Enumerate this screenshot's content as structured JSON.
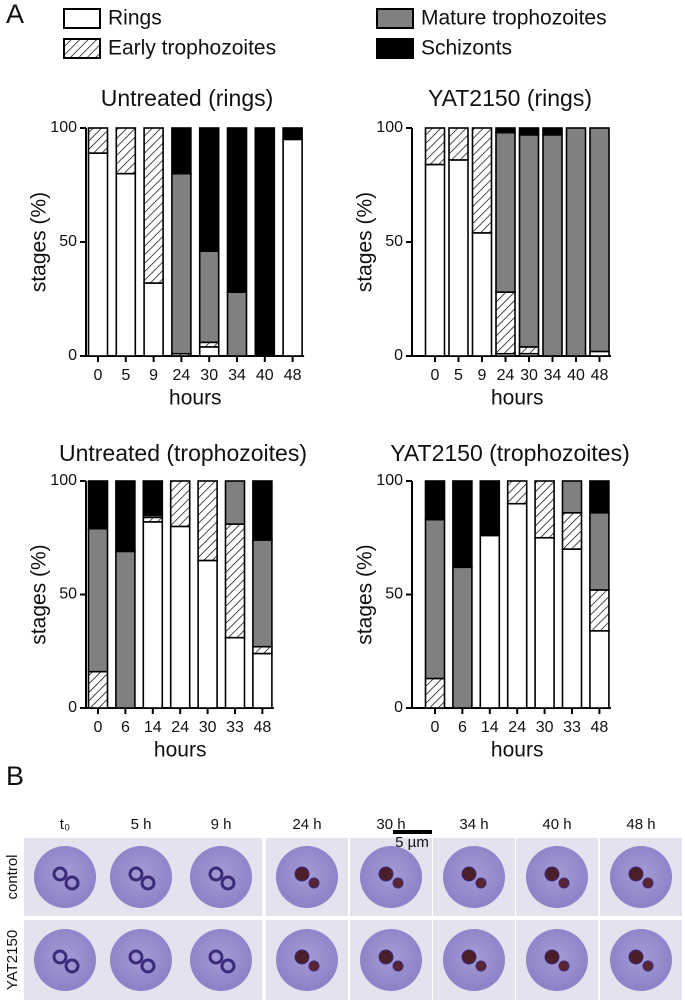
{
  "panel_label": "A",
  "chart_data": [
    {
      "type": "stacked-bar",
      "title": "Untreated (rings)",
      "x_label": "hours",
      "y_label": "stages (%)",
      "categories": [
        "0",
        "5",
        "9",
        "24",
        "30",
        "34",
        "40",
        "48"
      ],
      "ylim": [
        0,
        100
      ],
      "yticks": [
        0,
        50,
        100
      ],
      "series": [
        {
          "name": "Rings",
          "color": "#ffffff",
          "values": [
            89,
            80,
            32,
            0,
            4,
            0,
            0,
            95
          ]
        },
        {
          "name": "Early trophozoites",
          "color": "#ffffff",
          "hatch": true,
          "values": [
            11,
            20,
            68,
            1,
            2,
            0,
            0,
            0
          ]
        },
        {
          "name": "Mature trophozoites",
          "color": "#808080",
          "values": [
            0,
            0,
            0,
            79,
            40,
            28,
            0,
            0
          ]
        },
        {
          "name": "Schizonts",
          "color": "#000000",
          "values": [
            0,
            0,
            0,
            20,
            54,
            72,
            100,
            5
          ]
        }
      ]
    },
    {
      "type": "stacked-bar",
      "title": "YAT2150 (rings)",
      "x_label": "hours",
      "y_label": "stages (%)",
      "categories": [
        "0",
        "5",
        "9",
        "24",
        "30",
        "34",
        "40",
        "48"
      ],
      "ylim": [
        0,
        100
      ],
      "yticks": [
        0,
        50,
        100
      ],
      "series": [
        {
          "name": "Rings",
          "color": "#ffffff",
          "values": [
            84,
            86,
            54,
            1,
            1,
            0,
            0,
            2
          ]
        },
        {
          "name": "Early trophozoites",
          "color": "#ffffff",
          "hatch": true,
          "values": [
            16,
            14,
            46,
            27,
            3,
            0,
            0,
            0
          ]
        },
        {
          "name": "Mature trophozoites",
          "color": "#808080",
          "values": [
            0,
            0,
            0,
            70,
            93,
            97,
            100,
            98
          ]
        },
        {
          "name": "Schizonts",
          "color": "#000000",
          "values": [
            0,
            0,
            0,
            2,
            3,
            3,
            0,
            0
          ]
        }
      ]
    },
    {
      "type": "stacked-bar",
      "title": "Untreated (trophozoites)",
      "x_label": "hours",
      "y_label": "stages (%)",
      "categories": [
        "0",
        "6",
        "14",
        "24",
        "30",
        "33",
        "48"
      ],
      "ylim": [
        0,
        100
      ],
      "yticks": [
        0,
        50,
        100
      ],
      "series": [
        {
          "name": "Rings",
          "color": "#ffffff",
          "values": [
            0,
            0,
            82,
            80,
            65,
            31,
            24
          ]
        },
        {
          "name": "Early trophozoites",
          "color": "#ffffff",
          "hatch": true,
          "values": [
            16,
            0,
            2,
            20,
            35,
            50,
            3
          ]
        },
        {
          "name": "Mature trophozoites",
          "color": "#808080",
          "values": [
            63,
            69,
            1,
            0,
            0,
            19,
            47
          ]
        },
        {
          "name": "Schizonts",
          "color": "#000000",
          "values": [
            21,
            31,
            15,
            0,
            0,
            0,
            26
          ]
        }
      ]
    },
    {
      "type": "stacked-bar",
      "title": "YAT2150 (trophozoites)",
      "x_label": "hours",
      "y_label": "stages (%)",
      "categories": [
        "0",
        "6",
        "14",
        "24",
        "30",
        "33",
        "48"
      ],
      "ylim": [
        0,
        100
      ],
      "yticks": [
        0,
        50,
        100
      ],
      "series": [
        {
          "name": "Rings",
          "color": "#ffffff",
          "values": [
            0,
            0,
            76,
            90,
            75,
            70,
            34
          ]
        },
        {
          "name": "Early trophozoites",
          "color": "#ffffff",
          "hatch": true,
          "values": [
            13,
            0,
            0,
            10,
            25,
            16,
            18
          ]
        },
        {
          "name": "Mature trophozoites",
          "color": "#808080",
          "values": [
            70,
            62,
            0,
            0,
            0,
            14,
            34
          ]
        },
        {
          "name": "Schizonts",
          "color": "#000000",
          "values": [
            17,
            38,
            24,
            0,
            0,
            0,
            14
          ]
        }
      ]
    }
  ],
  "micrographs": {
    "panel_label": "B",
    "times": [
      "t₀",
      "5 h",
      "9 h",
      "24 h",
      "30 h",
      "34 h",
      "40 h",
      "48 h"
    ],
    "rows": [
      "control",
      "YAT2150"
    ],
    "scale_bar": "5 µm"
  }
}
